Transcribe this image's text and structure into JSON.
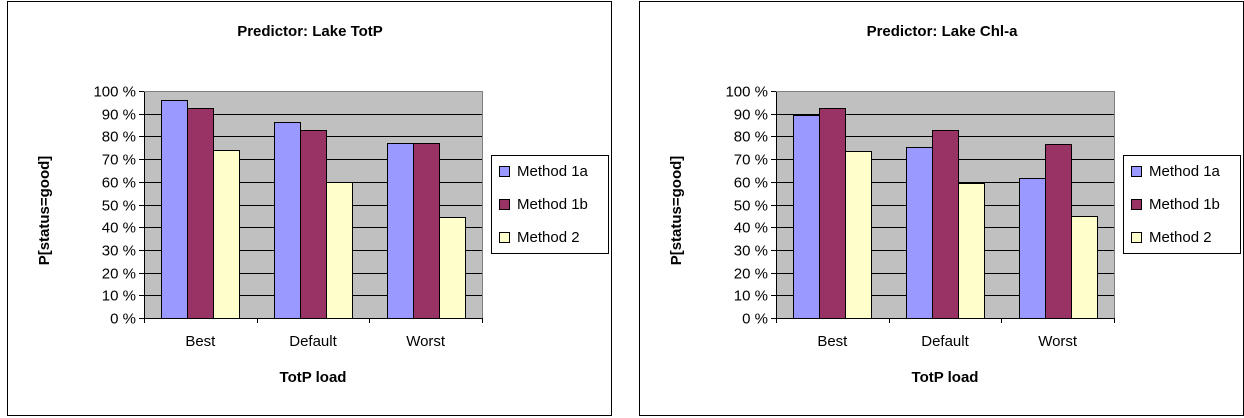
{
  "chart_data": [
    {
      "type": "bar",
      "title": "Predictor: Lake TotP",
      "xlabel": "TotP load",
      "ylabel": "P[status=good]",
      "categories": [
        "Best",
        "Default",
        "Worst"
      ],
      "ylim": [
        0,
        100
      ],
      "yticks": [
        "0 %",
        "10 %",
        "20 %",
        "30 %",
        "40 %",
        "50 %",
        "60 %",
        "70 %",
        "80 %",
        "90 %",
        "100 %"
      ],
      "grid": true,
      "legend_position": "right",
      "series": [
        {
          "name": "Method 1a",
          "color": "#9999FF",
          "values": [
            96,
            86.5,
            77
          ]
        },
        {
          "name": "Method 1b",
          "color": "#993366",
          "values": [
            92.5,
            83,
            77
          ]
        },
        {
          "name": "Method 2",
          "color": "#FFFFCC",
          "values": [
            74,
            60,
            44.5
          ]
        }
      ]
    },
    {
      "type": "bar",
      "title": "Predictor: Lake Chl-a",
      "xlabel": "TotP load",
      "ylabel": "P[status=good]",
      "categories": [
        "Best",
        "Default",
        "Worst"
      ],
      "ylim": [
        0,
        100
      ],
      "yticks": [
        "0 %",
        "10 %",
        "20 %",
        "30 %",
        "40 %",
        "50 %",
        "60 %",
        "70 %",
        "80 %",
        "90 %",
        "100 %"
      ],
      "grid": true,
      "legend_position": "right",
      "series": [
        {
          "name": "Method 1a",
          "color": "#9999FF",
          "values": [
            89.5,
            75.5,
            61.5
          ]
        },
        {
          "name": "Method 1b",
          "color": "#993366",
          "values": [
            92.5,
            83,
            76.5
          ]
        },
        {
          "name": "Method 2",
          "color": "#FFFFCC",
          "values": [
            73.5,
            59.5,
            45
          ]
        }
      ]
    }
  ]
}
